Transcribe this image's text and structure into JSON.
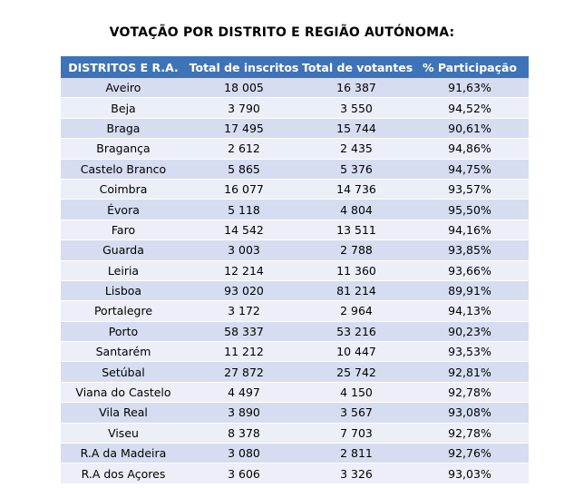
{
  "title": "VOTAÇÃO POR DISTRITO E REGIÃO AUTÓNOMA:",
  "table": {
    "headers": [
      "DISTRITOS E R.A.",
      "Total de inscritos",
      "Total de votantes",
      "% Participação"
    ],
    "rows": [
      [
        "Aveiro",
        "18 005",
        "16 387",
        "91,63%"
      ],
      [
        "Beja",
        "3 790",
        "3 550",
        "94,52%"
      ],
      [
        "Braga",
        "17 495",
        "15 744",
        "90,61%"
      ],
      [
        "Bragança",
        "2 612",
        "2 435",
        "94,86%"
      ],
      [
        "Castelo Branco",
        "5 865",
        "5 376",
        "94,75%"
      ],
      [
        "Coimbra",
        "16 077",
        "14 736",
        "93,57%"
      ],
      [
        "Évora",
        "5 118",
        "4 804",
        "95,50%"
      ],
      [
        "Faro",
        "14 542",
        "13 511",
        "94,16%"
      ],
      [
        "Guarda",
        "3 003",
        "2 788",
        "93,85%"
      ],
      [
        "Leiria",
        "12 214",
        "11 360",
        "93,66%"
      ],
      [
        "Lisboa",
        "93 020",
        "81 214",
        "89,91%"
      ],
      [
        "Portalegre",
        "3 172",
        "2 964",
        "94,13%"
      ],
      [
        "Porto",
        "58 337",
        "53 216",
        "90,23%"
      ],
      [
        "Santarém",
        "11 212",
        "10 447",
        "93,53%"
      ],
      [
        "Setúbal",
        "27 872",
        "25 742",
        "92,81%"
      ],
      [
        "Viana do Castelo",
        "4 497",
        "4 150",
        "92,78%"
      ],
      [
        "Vila Real",
        "3 890",
        "3 567",
        "93,08%"
      ],
      [
        "Viseu",
        "8 378",
        "7 703",
        "92,78%"
      ],
      [
        "R.A da Madeira",
        "3 080",
        "2 811",
        "92,76%"
      ],
      [
        "R.A dos Açores",
        "3 606",
        "3 326",
        "93,03%"
      ]
    ]
  },
  "colors": {
    "header_bg": "#3f73b8",
    "row_odd": "#d6ddf0",
    "row_even": "#eceff8"
  }
}
